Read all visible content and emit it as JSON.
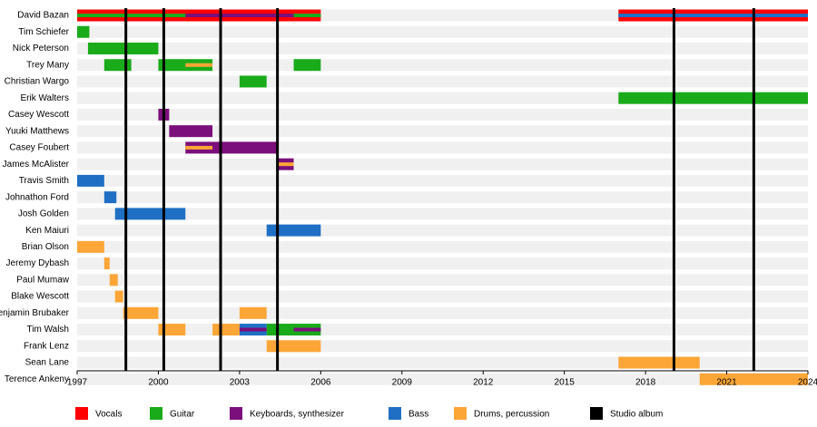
{
  "chart_data": {
    "type": "timeline",
    "xlim": [
      1997,
      2024
    ],
    "xticks": [
      1997,
      2000,
      2003,
      2006,
      2009,
      2012,
      2015,
      2018,
      2021,
      2024
    ],
    "categories": [
      "David Bazan",
      "Tim Schiefer",
      "Nick Peterson",
      "Trey Many",
      "Christian Wargo",
      "Erik Walters",
      "Casey Wescott",
      "Yuuki Matthews",
      "Casey Foubert",
      "James McAlister",
      "Travis Smith",
      "Johnathon Ford",
      "Josh Golden",
      "Ken Maiuri",
      "Brian Olson",
      "Jeremy Dybash",
      "Paul Mumaw",
      "Blake Wescott",
      "Benjamin Brubaker",
      "Tim Walsh",
      "Frank Lenz",
      "Sean Lane",
      "Terence Ankeny"
    ],
    "series": [
      {
        "name": "Vocals",
        "color": "#ff0000",
        "values": [
          [
            [
              1997,
              2006
            ],
            [
              2017,
              2024
            ]
          ],
          [],
          [],
          [],
          [],
          [],
          [],
          [],
          [],
          [],
          [],
          [],
          [],
          [],
          [],
          [],
          [],
          [],
          [],
          [],
          [],
          [],
          []
        ],
        "stripes": [
          [],
          [],
          [],
          [],
          [],
          [],
          [],
          [],
          [],
          [],
          [],
          [],
          [],
          [],
          [],
          [],
          [],
          [],
          [],
          [],
          [],
          [],
          []
        ]
      },
      {
        "name": "Guitar",
        "color": "#1aab1a",
        "values": [
          [],
          [
            [
              1997,
              1997.45
            ]
          ],
          [
            [
              1997.4,
              2000
            ]
          ],
          [
            [
              1998,
              1999
            ],
            [
              2000,
              2002
            ],
            [
              2005,
              2006
            ]
          ],
          [
            [
              2003,
              2004
            ]
          ],
          [
            [
              2017,
              2024
            ]
          ],
          [],
          [],
          [],
          [],
          [],
          [],
          [],
          [],
          [],
          [],
          [],
          [],
          [],
          [
            [
              2004,
              2006
            ]
          ],
          [],
          [],
          []
        ],
        "stripes": [
          [
            [
              1997,
              2006
            ]
          ],
          [],
          [],
          [],
          [],
          [],
          [],
          [],
          [],
          [],
          [],
          [],
          [],
          [],
          [],
          [],
          [],
          [],
          [],
          [],
          [],
          [],
          []
        ]
      },
      {
        "name": "Keyboards, synthesizer",
        "color": "#7b0f7b",
        "values": [
          [],
          [],
          [],
          [],
          [],
          [],
          [
            [
              2000,
              2000.4
            ]
          ],
          [
            [
              2000.4,
              2002
            ]
          ],
          [
            [
              2001,
              2004.4
            ]
          ],
          [
            [
              2004.4,
              2005
            ]
          ],
          [],
          [],
          [],
          [],
          [],
          [],
          [],
          [],
          [],
          [],
          [],
          [],
          []
        ],
        "stripes": [
          [
            [
              2001,
              2005
            ]
          ],
          [],
          [],
          [],
          [],
          [],
          [],
          [],
          [],
          [],
          [],
          [],
          [],
          [],
          [],
          [],
          [],
          [],
          [],
          [
            [
              2003,
              2004
            ],
            [
              2005,
              2006
            ]
          ],
          [],
          [],
          []
        ]
      },
      {
        "name": "Bass",
        "color": "#1f6fc4",
        "values": [
          [],
          [],
          [],
          [],
          [],
          [],
          [],
          [],
          [],
          [],
          [
            [
              1997,
              1998
            ]
          ],
          [
            [
              1998,
              1998.45
            ]
          ],
          [
            [
              1998.4,
              2001
            ]
          ],
          [
            [
              2004,
              2006
            ]
          ],
          [],
          [],
          [],
          [],
          [],
          [
            [
              2003,
              2004
            ]
          ],
          [],
          [],
          []
        ],
        "stripes": [
          [
            [
              2017,
              2024
            ]
          ],
          [],
          [],
          [],
          [],
          [],
          [],
          [],
          [],
          [],
          [],
          [],
          [],
          [],
          [],
          [],
          [],
          [],
          [],
          [],
          [],
          [],
          []
        ]
      },
      {
        "name": "Drums, percussion",
        "color": "#fca637",
        "values": [
          [],
          [],
          [],
          [],
          [],
          [],
          [],
          [],
          [],
          [],
          [],
          [],
          [],
          [],
          [
            [
              1997,
              1998
            ]
          ],
          [
            [
              1998,
              1998.2
            ]
          ],
          [
            [
              1998.2,
              1998.5
            ]
          ],
          [
            [
              1998.4,
              1998.7
            ]
          ],
          [
            [
              1998.7,
              2000
            ],
            [
              2003,
              2004
            ]
          ],
          [
            [
              2000,
              2001
            ],
            [
              2002,
              2003
            ]
          ],
          [
            [
              2004,
              2006
            ]
          ],
          [
            [
              2017,
              2020
            ]
          ],
          [
            [
              2020,
              2024
            ]
          ]
        ],
        "stripes": [
          [],
          [],
          [],
          [
            [
              2001,
              2002
            ]
          ],
          [],
          [],
          [],
          [],
          [
            [
              2001,
              2002
            ]
          ],
          [
            [
              2004.4,
              2005
            ]
          ],
          [],
          [],
          [],
          [],
          [],
          [],
          [],
          [],
          [],
          [],
          [],
          [],
          []
        ]
      }
    ],
    "albums": {
      "name": "Studio album",
      "color": "#000000",
      "values": [
        1998.8,
        2000.2,
        2002.3,
        2004.4,
        2019.05,
        2022.0
      ]
    }
  }
}
